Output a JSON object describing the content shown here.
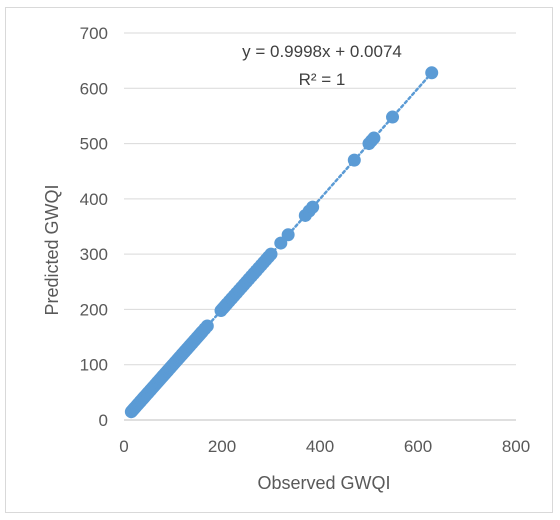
{
  "chart_data": {
    "type": "scatter",
    "title": "",
    "xlabel": "Observed GWQI",
    "ylabel": "Predicted GWQI",
    "xlim": [
      0,
      800
    ],
    "ylim": [
      0,
      700
    ],
    "x_ticks": [
      0,
      200,
      400,
      600,
      800
    ],
    "y_ticks": [
      0,
      100,
      200,
      300,
      400,
      500,
      600,
      700
    ],
    "grid": "horizontal",
    "legend": "none",
    "colors": {
      "points": "#5b9bd5",
      "trendline": "#5b9bd5",
      "grid": "#d9d9d9",
      "text": "#595959"
    },
    "trendline": {
      "type": "linear",
      "style": "dotted",
      "slope": 0.9998,
      "intercept": 0.0074,
      "x_range": [
        15,
        630
      ],
      "equation_label": "y = 0.9998x + 0.0074",
      "r2_label": "R² = 1"
    },
    "series": [
      {
        "x": [
          15,
          18,
          20,
          22,
          25,
          28,
          30,
          33,
          35,
          38,
          40,
          42,
          45,
          48,
          50,
          53,
          55,
          58,
          60,
          63,
          65,
          68,
          70,
          73,
          75,
          78,
          80,
          83,
          85,
          88,
          90,
          93,
          95,
          98,
          100,
          103,
          105,
          108,
          110,
          113,
          115,
          118,
          120,
          123,
          125,
          128,
          130,
          133,
          135,
          138,
          140,
          143,
          145,
          148,
          150,
          153,
          155,
          158,
          160,
          165,
          170,
          198,
          202,
          206,
          210,
          215,
          220,
          225,
          230,
          235,
          240,
          245,
          250,
          255,
          260,
          265,
          270,
          275,
          280,
          285,
          290,
          295,
          300,
          320,
          335,
          370,
          378,
          385,
          470,
          500,
          505,
          510,
          548,
          628
        ],
        "y": [
          15,
          18,
          20,
          22,
          25,
          28,
          30,
          33,
          35,
          38,
          40,
          42,
          45,
          48,
          50,
          53,
          55,
          58,
          60,
          63,
          65,
          68,
          70,
          73,
          75,
          78,
          80,
          83,
          85,
          88,
          90,
          93,
          95,
          98,
          100,
          103,
          105,
          108,
          110,
          113,
          115,
          118,
          120,
          123,
          125,
          128,
          130,
          133,
          135,
          138,
          140,
          143,
          145,
          148,
          150,
          153,
          155,
          158,
          160,
          165,
          170,
          198,
          202,
          206,
          210,
          215,
          220,
          225,
          230,
          235,
          240,
          245,
          250,
          255,
          260,
          265,
          270,
          275,
          280,
          285,
          290,
          295,
          300,
          320,
          335,
          370,
          378,
          385,
          470,
          500,
          505,
          510,
          548,
          628
        ]
      }
    ]
  }
}
